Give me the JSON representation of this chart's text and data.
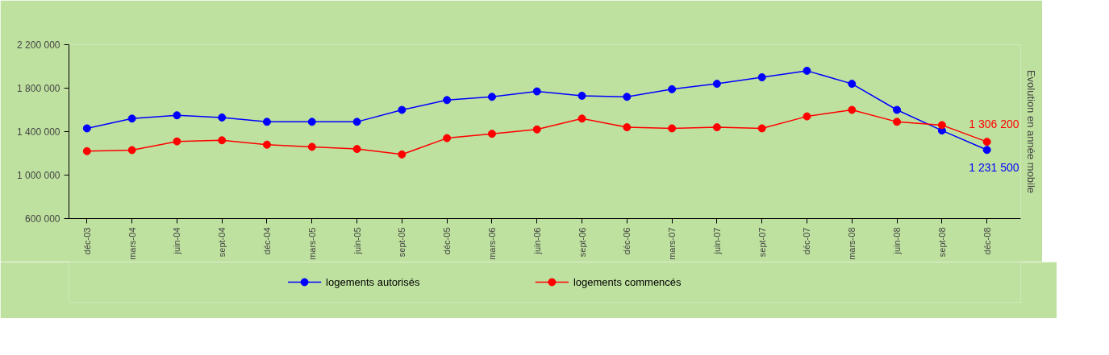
{
  "chart_data": {
    "type": "line",
    "ylabel": "Evolution en année mobile",
    "categories": [
      "déc-03",
      "mars-04",
      "juin-04",
      "sept-04",
      "déc-04",
      "mars-05",
      "juin-05",
      "sept-05",
      "déc-05",
      "mars-06",
      "juin-06",
      "sept-06",
      "déc-06",
      "mars-07",
      "juin-07",
      "sept-07",
      "déc-07",
      "mars-08",
      "juin-08",
      "sept-08",
      "déc-08"
    ],
    "series": [
      {
        "name": "logements autorisés",
        "color": "#0000ff",
        "values": [
          1430000,
          1520000,
          1550000,
          1530000,
          1490000,
          1490000,
          1490000,
          1600000,
          1690000,
          1720000,
          1770000,
          1730000,
          1720000,
          1790000,
          1840000,
          1900000,
          1960000,
          1840000,
          1600000,
          1410000,
          1231500
        ],
        "value_labels": [
          null,
          null,
          null,
          null,
          null,
          null,
          null,
          null,
          null,
          null,
          null,
          null,
          null,
          null,
          null,
          null,
          null,
          null,
          null,
          null,
          "1 231 500"
        ]
      },
      {
        "name": "logements commencés",
        "color": "#ff0000",
        "values": [
          1220000,
          1230000,
          1310000,
          1320000,
          1280000,
          1260000,
          1240000,
          1190000,
          1340000,
          1380000,
          1420000,
          1520000,
          1440000,
          1430000,
          1440000,
          1430000,
          1540000,
          1600000,
          1490000,
          1460000,
          1306200
        ],
        "value_labels": [
          null,
          null,
          null,
          null,
          null,
          null,
          null,
          null,
          null,
          null,
          null,
          null,
          null,
          null,
          null,
          null,
          null,
          null,
          null,
          null,
          "1 306 200"
        ]
      }
    ],
    "ylim": [
      600000,
      2200000
    ],
    "yticks": [
      {
        "value": 600000,
        "label": "600 000"
      },
      {
        "value": 1000000,
        "label": "1 000 000"
      },
      {
        "value": 1400000,
        "label": "1 400 000"
      },
      {
        "value": 1800000,
        "label": "1 800 000"
      },
      {
        "value": 2200000,
        "label": "2 200 000"
      }
    ],
    "grid": false,
    "legend": "bottom",
    "marker": "circle",
    "line_style": "solid"
  }
}
